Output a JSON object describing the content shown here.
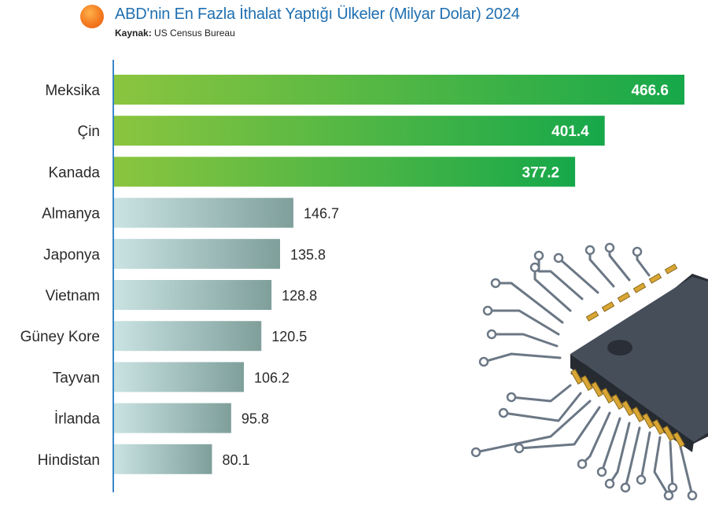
{
  "header": {
    "title": "ABD'nin En Fazla İthalat Yaptığı Ülkeler (Milyar Dolar) 2024",
    "source_label": "Kaynak:",
    "source_value": "US Census Bureau"
  },
  "colors": {
    "highlight_start": "#8bc53f",
    "highlight_end": "#16a84a",
    "normal_start": "#c9e3e2",
    "normal_end": "#7f9f9b",
    "title": "#1f6fb0",
    "axis": "#3a86c8",
    "logo": "#f47a20"
  },
  "decoration": {
    "icon": "microchip-icon"
  },
  "chart_data": {
    "type": "bar",
    "orientation": "horizontal",
    "title": "ABD'nin En Fazla İthalat Yaptığı Ülkeler (Milyar Dolar) 2024",
    "xlabel": "",
    "ylabel": "",
    "xlim": [
      0,
      466.6
    ],
    "categories": [
      "Meksika",
      "Çin",
      "Kanada",
      "Almanya",
      "Japonya",
      "Vietnam",
      "Güney Kore",
      "Tayvan",
      "İrlanda",
      "Hindistan"
    ],
    "values": [
      466.6,
      401.4,
      377.2,
      146.7,
      135.8,
      128.8,
      120.5,
      106.2,
      95.8,
      80.1
    ],
    "value_labels": [
      "466.6",
      "401.4",
      "377.2",
      "146.7",
      "135.8",
      "128.8",
      "120.5",
      "106.2",
      "95.8",
      "80.1"
    ],
    "highlighted": [
      true,
      true,
      true,
      false,
      false,
      false,
      false,
      false,
      false,
      false
    ],
    "grid": false
  }
}
